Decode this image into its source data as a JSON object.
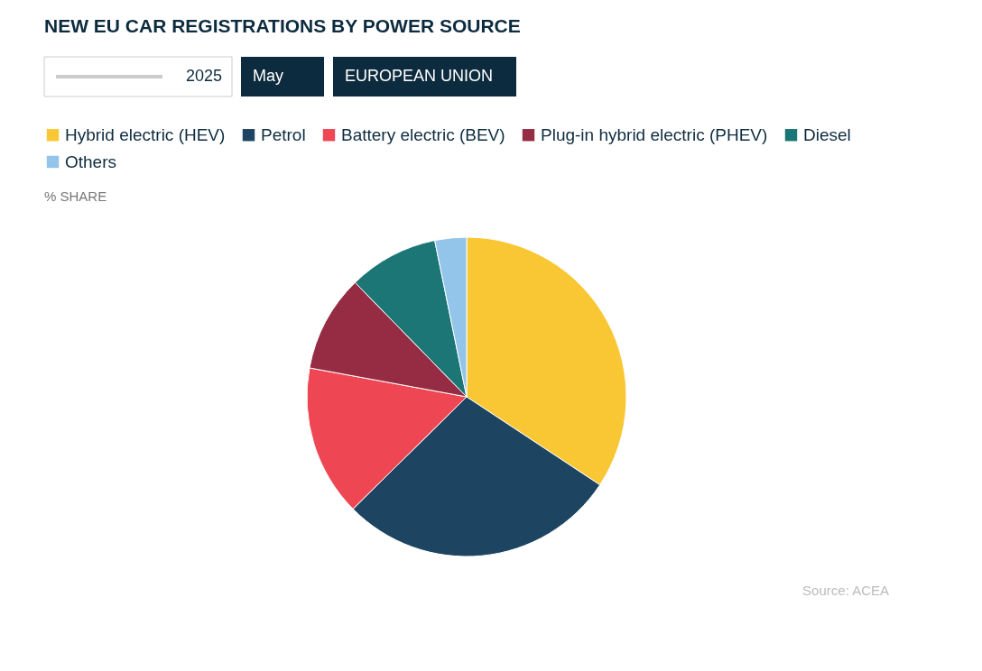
{
  "chart_data": {
    "type": "pie",
    "title": "NEW EU CAR REGISTRATIONS BY POWER SOURCE",
    "subtitle": "% SHARE",
    "categories": [
      "Hybrid electric (HEV)",
      "Petrol",
      "Battery electric (BEV)",
      "Plug-in hybrid electric (PHEV)",
      "Diesel",
      "Others"
    ],
    "values": [
      34.3,
      28.3,
      15.3,
      9.8,
      9.1,
      3.2
    ],
    "colors": [
      "#f9c733",
      "#1d4461",
      "#ee4653",
      "#962c43",
      "#1b7675",
      "#93c5ea"
    ],
    "legend": "top left",
    "annotations": [
      "2025",
      "May",
      "EUROPEAN UNION",
      "Source: ACEA"
    ]
  }
}
